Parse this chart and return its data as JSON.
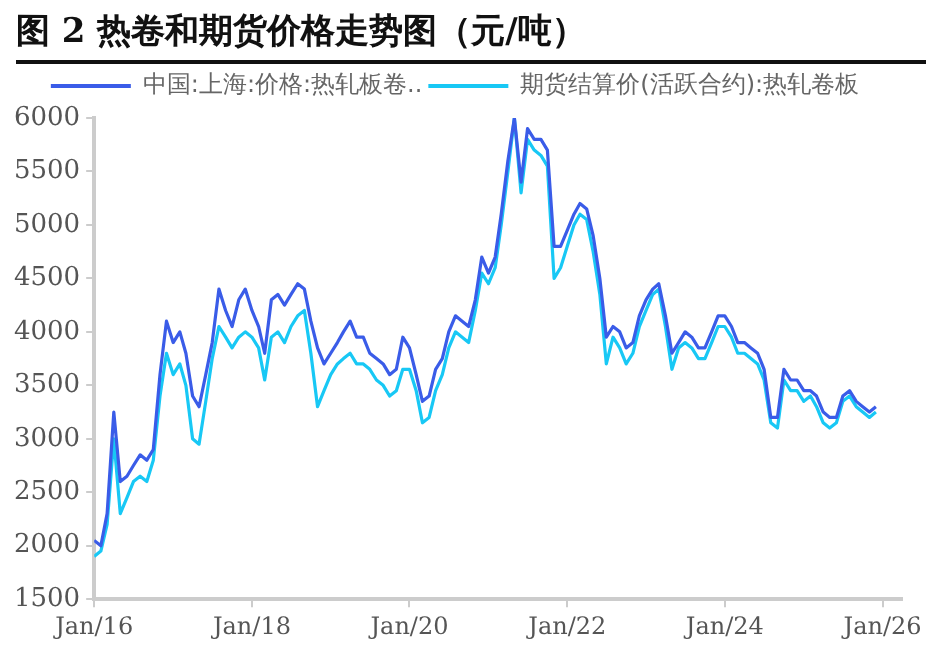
{
  "chart_data": {
    "type": "line",
    "title": "图 2 热卷和期货价格走势图（元/吨）",
    "x": [
      "2016-01",
      "2016-02",
      "2016-03",
      "2016-04",
      "2016-05",
      "2016-06",
      "2016-07",
      "2016-08",
      "2016-09",
      "2016-10",
      "2016-11",
      "2016-12",
      "2017-01",
      "2017-02",
      "2017-03",
      "2017-04",
      "2017-05",
      "2017-06",
      "2017-07",
      "2017-08",
      "2017-09",
      "2017-10",
      "2017-11",
      "2017-12",
      "2018-01",
      "2018-02",
      "2018-03",
      "2018-04",
      "2018-05",
      "2018-06",
      "2018-07",
      "2018-08",
      "2018-09",
      "2018-10",
      "2018-11",
      "2018-12",
      "2019-01",
      "2019-02",
      "2019-03",
      "2019-04",
      "2019-05",
      "2019-06",
      "2019-07",
      "2019-08",
      "2019-09",
      "2019-10",
      "2019-11",
      "2019-12",
      "2020-01",
      "2020-02",
      "2020-03",
      "2020-04",
      "2020-05",
      "2020-06",
      "2020-07",
      "2020-08",
      "2020-09",
      "2020-10",
      "2020-11",
      "2020-12",
      "2021-01",
      "2021-02",
      "2021-03",
      "2021-04",
      "2021-05",
      "2021-06",
      "2021-07",
      "2021-08",
      "2021-09",
      "2021-10",
      "2021-11",
      "2021-12",
      "2022-01",
      "2022-02",
      "2022-03",
      "2022-04",
      "2022-05",
      "2022-06",
      "2022-07",
      "2022-08",
      "2022-09",
      "2022-10",
      "2022-11",
      "2022-12",
      "2023-01",
      "2023-02",
      "2023-03",
      "2023-04",
      "2023-05",
      "2023-06",
      "2023-07",
      "2023-08",
      "2023-09",
      "2023-10",
      "2023-11",
      "2023-12",
      "2024-01",
      "2024-02",
      "2024-03",
      "2024-04",
      "2024-05",
      "2024-06",
      "2024-07",
      "2024-08",
      "2024-09",
      "2024-10",
      "2024-11",
      "2024-12",
      "2025-01",
      "2025-02",
      "2025-03",
      "2025-04",
      "2025-05",
      "2025-06",
      "2025-07",
      "2025-08",
      "2025-09",
      "2025-10",
      "2025-11",
      "2025-12"
    ],
    "series": [
      {
        "name": "中国:上海:价格:热轧板卷..",
        "color": "#3a5ce8",
        "values": [
          2050,
          2000,
          2300,
          3250,
          2600,
          2650,
          2750,
          2850,
          2800,
          2900,
          3600,
          4100,
          3900,
          4000,
          3800,
          3400,
          3300,
          3600,
          3900,
          4400,
          4200,
          4050,
          4300,
          4400,
          4200,
          4050,
          3800,
          4300,
          4350,
          4250,
          4350,
          4450,
          4400,
          4100,
          3850,
          3700,
          3800,
          3900,
          4000,
          4100,
          3950,
          3950,
          3800,
          3750,
          3700,
          3600,
          3650,
          3950,
          3850,
          3600,
          3350,
          3400,
          3650,
          3750,
          4000,
          4150,
          4100,
          4050,
          4300,
          4700,
          4550,
          4700,
          5100,
          5600,
          6000,
          5400,
          5900,
          5800,
          5800,
          5700,
          4800,
          4800,
          4950,
          5100,
          5200,
          5150,
          4900,
          4500,
          3950,
          4050,
          4000,
          3850,
          3900,
          4150,
          4300,
          4400,
          4450,
          4150,
          3800,
          3900,
          4000,
          3950,
          3850,
          3850,
          4000,
          4150,
          4150,
          4050,
          3900,
          3900,
          3850,
          3800,
          3650,
          3200,
          3200,
          3650,
          3550,
          3550,
          3450,
          3450,
          3400,
          3250,
          3200,
          3200,
          3400,
          3450,
          3350,
          3300,
          3250,
          3300
        ]
      },
      {
        "name": "期货结算价(活跃合约):热轧卷板",
        "color": "#18c8f5",
        "values": [
          1900,
          1950,
          2200,
          3000,
          2300,
          2450,
          2600,
          2650,
          2600,
          2800,
          3400,
          3800,
          3600,
          3700,
          3500,
          3000,
          2950,
          3350,
          3750,
          4050,
          3950,
          3850,
          3950,
          4000,
          3950,
          3850,
          3550,
          3950,
          4000,
          3900,
          4050,
          4150,
          4200,
          3800,
          3300,
          3450,
          3600,
          3700,
          3750,
          3800,
          3700,
          3700,
          3650,
          3550,
          3500,
          3400,
          3450,
          3650,
          3650,
          3450,
          3150,
          3200,
          3450,
          3600,
          3850,
          4000,
          3950,
          3900,
          4200,
          4550,
          4450,
          4600,
          5000,
          5500,
          6000,
          5300,
          5800,
          5700,
          5650,
          5550,
          4500,
          4600,
          4800,
          5000,
          5100,
          5050,
          4750,
          4350,
          3700,
          3950,
          3850,
          3700,
          3800,
          4050,
          4200,
          4350,
          4400,
          4050,
          3650,
          3850,
          3900,
          3850,
          3750,
          3750,
          3900,
          4050,
          4050,
          3950,
          3800,
          3800,
          3750,
          3700,
          3550,
          3150,
          3100,
          3550,
          3450,
          3450,
          3350,
          3400,
          3300,
          3150,
          3100,
          3150,
          3350,
          3400,
          3300,
          3250,
          3200,
          3250
        ]
      }
    ],
    "xlim": [
      "2016-01",
      "2026-04"
    ],
    "xticks": [
      {
        "value": "2016-01",
        "label": "Jan/16"
      },
      {
        "value": "2018-01",
        "label": "Jan/18"
      },
      {
        "value": "2020-01",
        "label": "Jan/20"
      },
      {
        "value": "2022-01",
        "label": "Jan/22"
      },
      {
        "value": "2024-01",
        "label": "Jan/24"
      },
      {
        "value": "2026-01",
        "label": "Jan/26"
      }
    ],
    "ylim": [
      1500,
      6000
    ],
    "yticks": [
      1500,
      2000,
      2500,
      3000,
      3500,
      4000,
      4500,
      5000,
      5500,
      6000
    ],
    "grid": false,
    "legend": "top",
    "marker": "none",
    "line_style": "solid"
  }
}
